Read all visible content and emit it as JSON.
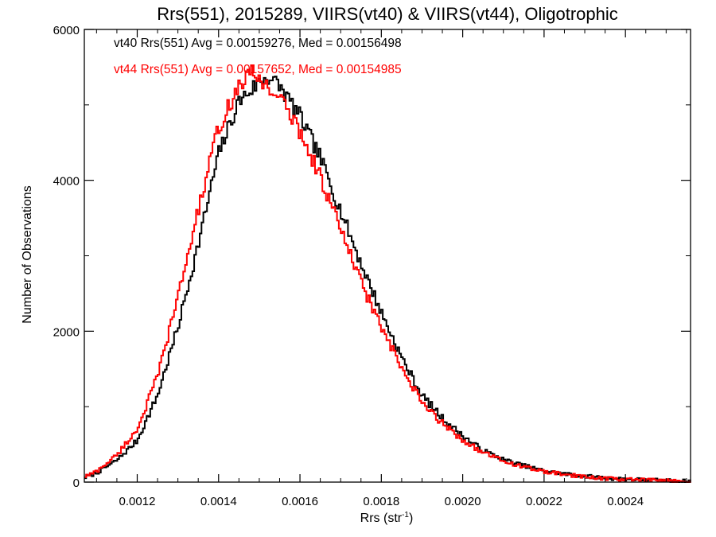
{
  "chart_data": {
    "type": "line",
    "step": true,
    "title": "Rrs(551), 2015289, VIIRS(vt40) & VIIRS(vt44), Oligotrophic",
    "xlabel": "Rrs (str",
    "xlabel_sup": "-1",
    "xlabel_close": ")",
    "ylabel": "Number of Observations",
    "xlim": [
      0.00107,
      0.00256
    ],
    "ylim": [
      0,
      6000
    ],
    "xticks": [
      0.0012,
      0.0014,
      0.0016,
      0.0018,
      0.002,
      0.0022,
      0.0024
    ],
    "xtick_labels": [
      "0.0012",
      "0.0014",
      "0.0016",
      "0.0018",
      "0.0020",
      "0.0022",
      "0.0024"
    ],
    "yticks": [
      0,
      2000,
      4000,
      6000
    ],
    "ytick_labels": [
      "0",
      "2000",
      "4000",
      "6000"
    ],
    "xminor_step": 5e-05,
    "yminor_step": 1000,
    "grid": false,
    "legend_position": "top-left",
    "series": [
      {
        "legend": "vt40 Rrs(551) Avg = 0.00159276, Med = 0.00156498",
        "color": "#000000",
        "x": [
          0.00107,
          0.0011,
          0.00115,
          0.0012,
          0.00125,
          0.0013,
          0.00135,
          0.0014,
          0.00145,
          0.0015,
          0.00152,
          0.00155,
          0.0016,
          0.00165,
          0.0017,
          0.00175,
          0.0018,
          0.00185,
          0.0019,
          0.00195,
          0.002,
          0.00205,
          0.0021,
          0.00215,
          0.0022,
          0.00225,
          0.0023,
          0.00235,
          0.0024,
          0.00245,
          0.0025,
          0.00256
        ],
        "y": [
          60,
          120,
          290,
          550,
          1150,
          2050,
          3150,
          4350,
          5050,
          5300,
          5380,
          5250,
          4850,
          4300,
          3600,
          2900,
          2250,
          1650,
          1150,
          850,
          610,
          420,
          300,
          220,
          150,
          110,
          80,
          55,
          40,
          30,
          20,
          10
        ]
      },
      {
        "legend": "vt44 Rrs(551) Avg = 0.00157652, Med = 0.00154985",
        "color": "#ff0000",
        "x": [
          0.00107,
          0.0011,
          0.00115,
          0.0012,
          0.00125,
          0.0013,
          0.00135,
          0.0014,
          0.00145,
          0.00148,
          0.0015,
          0.00155,
          0.0016,
          0.00165,
          0.0017,
          0.00175,
          0.0018,
          0.00185,
          0.0019,
          0.00195,
          0.002,
          0.00205,
          0.0021,
          0.00215,
          0.0022,
          0.00225,
          0.0023,
          0.00235,
          0.0024,
          0.00245,
          0.0025,
          0.00256
        ],
        "y": [
          70,
          140,
          360,
          700,
          1400,
          2450,
          3600,
          4700,
          5250,
          5420,
          5350,
          5100,
          4650,
          4050,
          3350,
          2650,
          2050,
          1500,
          1050,
          780,
          560,
          390,
          280,
          200,
          140,
          100,
          70,
          50,
          35,
          25,
          18,
          10
        ]
      }
    ]
  }
}
